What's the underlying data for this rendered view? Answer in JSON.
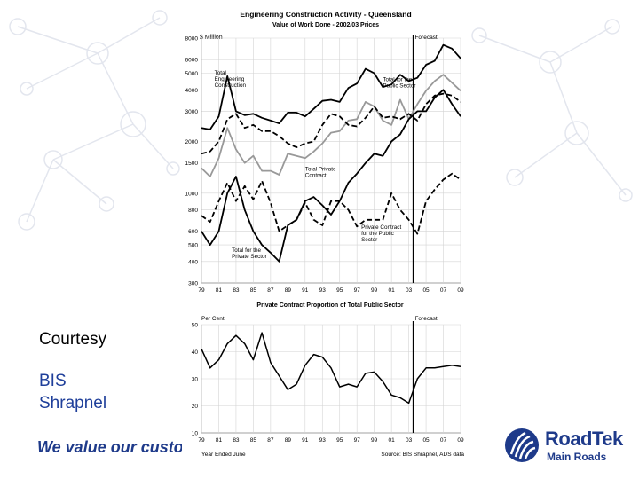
{
  "slide": {
    "courtesy": "Courtesy",
    "credit_line1": "BIS",
    "credit_line2": "Shrapnel",
    "tagline": "We value our custome",
    "logo_name": "RoadTek",
    "logo_sub": "Main Roads",
    "accent_color": "#1e3a8a"
  },
  "chart_data": [
    {
      "type": "line",
      "title": "Engineering Construction Activity - Queensland",
      "subtitle": "Value of Work Done - 2002/03 Prices",
      "ylabel": "$ Million",
      "forecast_label": "Forecast",
      "scale": "log",
      "ylim": [
        300,
        8000
      ],
      "yticks": [
        300,
        400,
        500,
        600,
        800,
        1000,
        1500,
        2000,
        3000,
        4000,
        5000,
        6000,
        8000
      ],
      "x": [
        1979,
        1980,
        1981,
        1982,
        1983,
        1984,
        1985,
        1986,
        1987,
        1988,
        1989,
        1990,
        1991,
        1992,
        1993,
        1994,
        1995,
        1996,
        1997,
        1998,
        1999,
        2000,
        2001,
        2002,
        2003,
        2004,
        2005,
        2006,
        2007,
        2008,
        2009
      ],
      "xticks": [
        "79",
        "81",
        "83",
        "85",
        "87",
        "89",
        "91",
        "93",
        "95",
        "97",
        "99",
        "01",
        "03",
        "05",
        "07",
        "09"
      ],
      "forecast_start": 2003.5,
      "grid": true,
      "series": [
        {
          "name": "Total Engineering Construction",
          "style": "solid-thick",
          "color": "#000000",
          "values": [
            2400,
            2350,
            2800,
            4800,
            3000,
            2850,
            2900,
            2750,
            2650,
            2550,
            2950,
            2950,
            2800,
            3100,
            3450,
            3500,
            3400,
            4100,
            4350,
            5300,
            5000,
            4150,
            4300,
            4900,
            4500,
            4700,
            5600,
            5900,
            7300,
            6950,
            6100
          ]
        },
        {
          "name": "Total for the Public Sector",
          "style": "gray",
          "color": "#999999",
          "values": [
            1400,
            1250,
            1600,
            2400,
            1800,
            1500,
            1650,
            1350,
            1350,
            1280,
            1700,
            1650,
            1600,
            1750,
            1950,
            2250,
            2300,
            2650,
            2700,
            3400,
            3200,
            2650,
            2500,
            3500,
            2700,
            3300,
            3950,
            4500,
            4900,
            4400,
            3950
          ]
        },
        {
          "name": "Total Private Contract",
          "style": "dashed",
          "color": "#000000",
          "values": [
            1700,
            1750,
            2000,
            2700,
            2900,
            2400,
            2500,
            2300,
            2300,
            2150,
            1950,
            1850,
            1950,
            2000,
            2500,
            2900,
            2800,
            2500,
            2450,
            2750,
            3200,
            2750,
            2800,
            2700,
            2900,
            2650,
            3300,
            3700,
            3800,
            3700,
            3400
          ]
        },
        {
          "name": "Private Contract for the Public Sector",
          "style": "dashed",
          "color": "#000000",
          "values": [
            740,
            680,
            900,
            1150,
            900,
            1100,
            920,
            1180,
            880,
            600,
            650,
            700,
            880,
            700,
            650,
            900,
            900,
            800,
            640,
            700,
            700,
            700,
            1000,
            800,
            700,
            580,
            900,
            1050,
            1200,
            1300,
            1200
          ]
        },
        {
          "name": "Total for the Private Sector",
          "style": "solid-thick",
          "color": "#000000",
          "values": [
            600,
            500,
            600,
            1000,
            1250,
            800,
            600,
            500,
            450,
            400,
            650,
            700,
            900,
            950,
            850,
            750,
            900,
            1150,
            1300,
            1500,
            1700,
            1650,
            2000,
            2200,
            2700,
            3000,
            3000,
            3600,
            4000,
            3300,
            2800
          ]
        }
      ],
      "labels": [
        {
          "text": "Total Engineering Construction",
          "year": 1980.5,
          "value": 4900
        },
        {
          "text": "Total for the Public Sector",
          "year": 2000.0,
          "value": 4500
        },
        {
          "text": "Total Private Contract",
          "year": 1991.0,
          "value": 1350
        },
        {
          "text": "Private Contract for the Public Sector",
          "year": 1997.5,
          "value": 620
        },
        {
          "text": "Total for the Private Sector",
          "year": 1982.5,
          "value": 455
        }
      ]
    },
    {
      "type": "line",
      "title": "Private Contract Proportion of Total Public Sector",
      "ylabel": "Per Cent",
      "forecast_label": "Forecast",
      "ylim": [
        10,
        50
      ],
      "yticks": [
        10,
        20,
        30,
        40,
        50
      ],
      "x": [
        1979,
        1980,
        1981,
        1982,
        1983,
        1984,
        1985,
        1986,
        1987,
        1988,
        1989,
        1990,
        1991,
        1992,
        1993,
        1994,
        1995,
        1996,
        1997,
        1998,
        1999,
        2000,
        2001,
        2002,
        2003,
        2004,
        2005,
        2006,
        2007,
        2008,
        2009
      ],
      "xticks": [
        "79",
        "81",
        "83",
        "85",
        "87",
        "89",
        "91",
        "93",
        "95",
        "97",
        "99",
        "01",
        "03",
        "05",
        "07",
        "09"
      ],
      "xlabel": "Year Ended June",
      "source": "Source: BIS Shrapnel, ADS data",
      "forecast_start": 2003.5,
      "series": [
        {
          "name": "Private Contract Proportion",
          "style": "solid",
          "color": "#000000",
          "values": [
            41,
            34,
            37,
            43,
            46,
            43,
            37,
            47,
            36,
            31,
            26,
            28,
            35,
            39,
            38,
            34,
            27,
            28,
            27,
            32,
            32.5,
            29,
            24,
            23,
            21,
            30,
            34,
            34,
            34.5,
            35,
            34.5
          ]
        }
      ]
    }
  ]
}
